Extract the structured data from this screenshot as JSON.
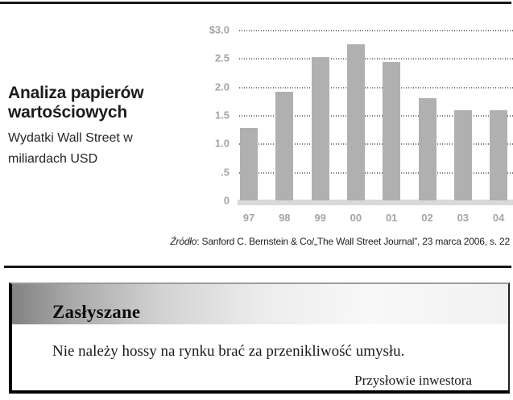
{
  "figure": {
    "title": "Analiza papierów wartościowych",
    "subtitle": "Wydatki Wall Street w miliardach USD"
  },
  "chart_data": {
    "type": "bar",
    "categories": [
      "97",
      "98",
      "99",
      "00",
      "01",
      "02",
      "03",
      "04"
    ],
    "values": [
      1.27,
      1.91,
      2.52,
      2.75,
      2.43,
      1.8,
      1.58,
      1.58
    ],
    "title": "Analiza papierów wartościowych",
    "subtitle": "Wydatki Wall Street w miliardach USD",
    "xlabel": "",
    "ylabel": "",
    "ylim": [
      0,
      3.0
    ],
    "ytick_values": [
      3.0,
      2.5,
      2.0,
      1.5,
      1.0,
      0.5,
      0
    ],
    "ytick_labels": [
      "$3.0",
      "2.5",
      "2.0",
      "1.5",
      "1.0",
      ".5",
      "0"
    ],
    "grid": "horizontal-dotted",
    "legend": "none",
    "bar_color": "#b0b0b0",
    "baseline_color": "#d9d9d9",
    "tick_label_color": "#a5a5a5"
  },
  "source": {
    "label": "Źródło",
    "text": ": Sanford C. Bernstein & Co/„The Wall Street Journal”, 23 marca 2006, s. 22"
  },
  "quote_box": {
    "heading": "Zasłyszane",
    "quote": "Nie należy hossy na rynku brać za przenikliwość umysłu.",
    "attribution": "Przysłowie inwestora"
  },
  "colors": {
    "rule": "#161616",
    "bar": "#b0b0b0",
    "baseline": "#d9d9d9",
    "axis_text": "#a5a5a5",
    "gridline": "#7a7a7a",
    "header_gradient_start": "#828282",
    "header_gradient_end": "#f2f2f2"
  }
}
